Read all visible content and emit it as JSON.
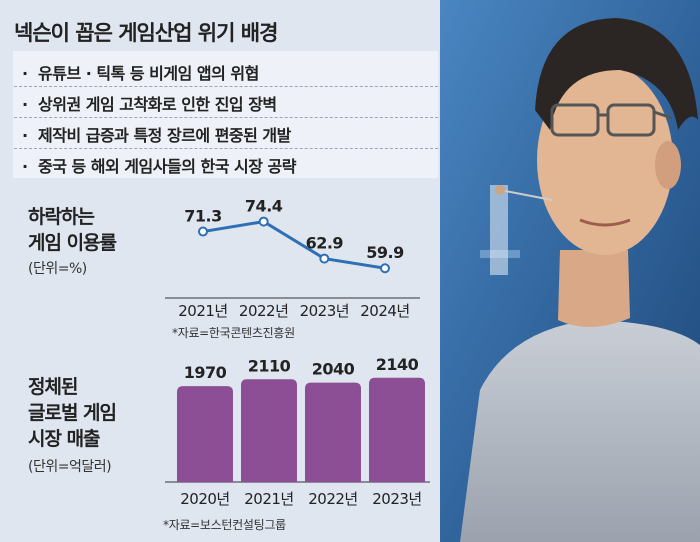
{
  "title": "넥슨이 꼽은 게임산업 위기 배경",
  "reasons": [
    "유튜브 · 틱톡 등 비게임 앱의 위협",
    "상위권 게임 고착화로 인한 진입 장벽",
    "제작비 급증과 특정 장르에 편중된 개발",
    "중국 등 해외 게임사들의 한국 시장 공략"
  ],
  "bullet": "·",
  "chart1": {
    "title_line1": "하락하는",
    "title_line2": "게임 이용률",
    "unit": "(단위=%)",
    "source": "*자료=한국콘텐츠진흥원"
  },
  "chart2": {
    "title_line1": "정체된",
    "title_line2": "글로벌 게임",
    "title_line3": "시장 매출",
    "unit": "(단위=억달러)",
    "source": "*자료=보스턴컨설팅그룹"
  },
  "colors": {
    "line": "#2f6fb3",
    "bar": "#8c4f95",
    "background": "#dfe6f0"
  },
  "photo": {
    "icon": "person-photo"
  },
  "chart_data": [
    {
      "type": "line",
      "title": "하락하는 게임 이용률",
      "unit": "(단위=%)",
      "categories": [
        "2021년",
        "2022년",
        "2023년",
        "2024년"
      ],
      "values": [
        71.3,
        74.4,
        62.9,
        59.9
      ],
      "value_labels": [
        "71.3",
        "74.4",
        "62.9",
        "59.9"
      ],
      "ylim": [
        55,
        78
      ],
      "grid": false
    },
    {
      "type": "bar",
      "title": "정체된 글로벌 게임 시장 매출",
      "unit": "(단위=억달러)",
      "categories": [
        "2020년",
        "2021년",
        "2022년",
        "2023년"
      ],
      "values": [
        1970,
        2110,
        2040,
        2140
      ],
      "value_labels": [
        "1970",
        "2110",
        "2040",
        "2140"
      ],
      "ylim": [
        0,
        2300
      ],
      "grid": false
    }
  ]
}
